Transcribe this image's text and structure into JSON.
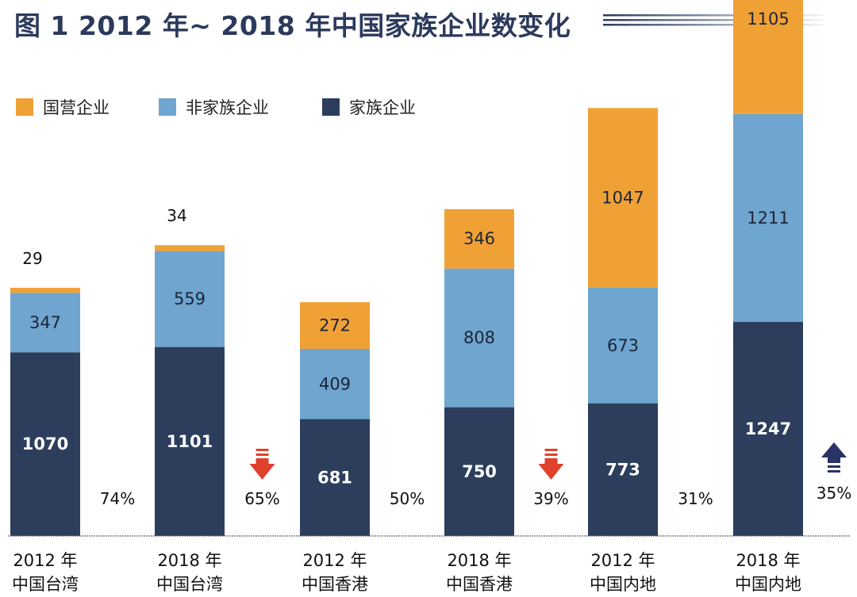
{
  "title": "图 1 2012 年~ 2018 年中国家族企业数变化",
  "colors": {
    "state": "#f0a136",
    "nonfamily": "#6fa5cf",
    "family": "#2c3e5c",
    "down_arrow": "#e0402c",
    "up_arrow": "#2b3366",
    "title": "#2b3a5c"
  },
  "chart_data": {
    "type": "bar",
    "stacked": true,
    "categories": [
      [
        "2012 年",
        "中国台湾"
      ],
      [
        "2018 年",
        "中国台湾"
      ],
      [
        "2012 年",
        "中国香港"
      ],
      [
        "2018 年",
        "中国香港"
      ],
      [
        "2012 年",
        "中国内地"
      ],
      [
        "2018 年",
        "中国内地"
      ]
    ],
    "series": [
      {
        "name": "家族企业",
        "key": "family",
        "values": [
          1070,
          1101,
          681,
          750,
          773,
          1247
        ]
      },
      {
        "name": "非家族企业",
        "key": "nonfamily",
        "values": [
          347,
          559,
          409,
          808,
          673,
          1211
        ]
      },
      {
        "name": "国营企业",
        "key": "state",
        "values": [
          29,
          34,
          272,
          346,
          1047,
          1105
        ]
      }
    ],
    "legend_order": [
      "国营企业",
      "非家族企业",
      "家族企业"
    ],
    "legend_position": "top-left",
    "changes": [
      {
        "after": 0,
        "label": "74%",
        "arrow": "none"
      },
      {
        "after": 1,
        "label": "65%",
        "arrow": "down"
      },
      {
        "after": 2,
        "label": "50%",
        "arrow": "none"
      },
      {
        "after": 3,
        "label": "39%",
        "arrow": "down"
      },
      {
        "after": 4,
        "label": "31%",
        "arrow": "none"
      },
      {
        "after": 5,
        "label": "35%",
        "arrow": "up"
      }
    ],
    "ylim": [
      0,
      3600
    ],
    "grid": false
  }
}
